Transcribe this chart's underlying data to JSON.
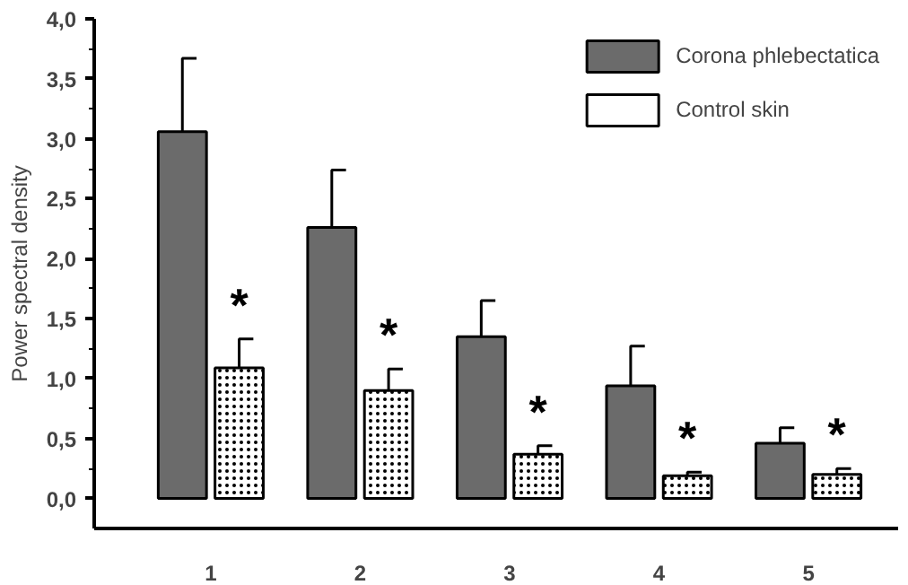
{
  "chart_data": {
    "type": "bar",
    "ylabel": "Power spectral density",
    "categories": [
      "1",
      "2",
      "3",
      "4",
      "5"
    ],
    "series": [
      {
        "name": "Corona phlebectatica",
        "color": "#6b6b6b",
        "values": [
          3.06,
          2.26,
          1.35,
          0.94,
          0.46
        ],
        "errors": [
          [
            3.06,
            3.67
          ],
          [
            2.26,
            2.74
          ],
          [
            1.35,
            1.65
          ],
          [
            0.94,
            1.27
          ],
          [
            0.46,
            0.59
          ]
        ]
      },
      {
        "name": "Control skin",
        "color": "#ffffff",
        "values": [
          1.09,
          0.9,
          0.37,
          0.19,
          0.2
        ],
        "errors": [
          [
            1.09,
            1.33
          ],
          [
            0.9,
            1.08
          ],
          [
            0.37,
            0.44
          ],
          [
            0.19,
            0.22
          ],
          [
            0.2,
            0.25
          ]
        ]
      }
    ],
    "ylim": [
      -0.25,
      4.0
    ],
    "yticks": [
      {
        "value": 0,
        "label": "0,0"
      },
      {
        "value": 0.5,
        "label": "0,5"
      },
      {
        "value": 1,
        "label": "1,0"
      },
      {
        "value": 1.5,
        "label": "1,5"
      },
      {
        "value": 2,
        "label": "2,0"
      },
      {
        "value": 2.5,
        "label": "2,5"
      },
      {
        "value": 3,
        "label": "3,0"
      },
      {
        "value": 3.5,
        "label": "3,5"
      },
      {
        "value": 4,
        "label": "4,0"
      }
    ],
    "annotations": [
      "*",
      "*",
      "*",
      "*",
      "*"
    ],
    "grid": false,
    "legend": "top right"
  }
}
